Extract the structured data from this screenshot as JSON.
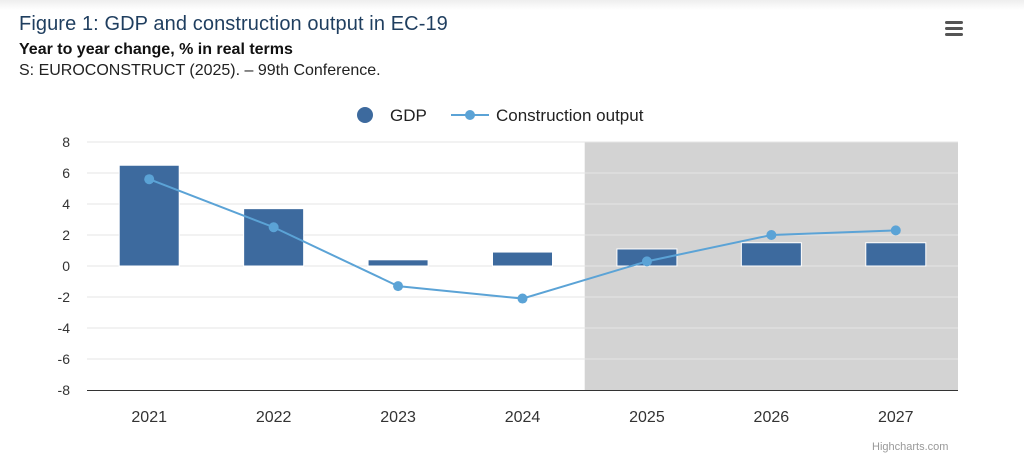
{
  "header": {
    "title": "Figure 1: GDP and construction output in EC-19",
    "subtitle": "Year to year change, % in real terms",
    "source": "S: EUROCONSTRUCT (2025). – 99th Conference."
  },
  "menu": {
    "icon": "hamburger-menu-icon"
  },
  "credits": "Highcharts.com",
  "colors": {
    "gdp": "#3d6a9e",
    "construction": "#5ba3d6",
    "forecast_band": "#d3d3d3",
    "grid": "#e6e6e6"
  },
  "chart_data": {
    "type": "bar",
    "categories": [
      "2021",
      "2022",
      "2023",
      "2024",
      "2025",
      "2026",
      "2027"
    ],
    "series": [
      {
        "name": "GDP",
        "type": "bar",
        "values": [
          6.5,
          3.7,
          0.4,
          0.9,
          1.1,
          1.5,
          1.5
        ]
      },
      {
        "name": "Construction output",
        "type": "line",
        "values": [
          5.6,
          2.5,
          -1.3,
          -2.1,
          0.3,
          2.0,
          2.3
        ]
      }
    ],
    "ylim": [
      -8,
      8
    ],
    "yticks": [
      "8",
      "6",
      "4",
      "2",
      "0",
      "-2",
      "-4",
      "-6",
      "-8"
    ],
    "plot_band_from": "2025",
    "grid": true,
    "legend_position": "top-center"
  }
}
